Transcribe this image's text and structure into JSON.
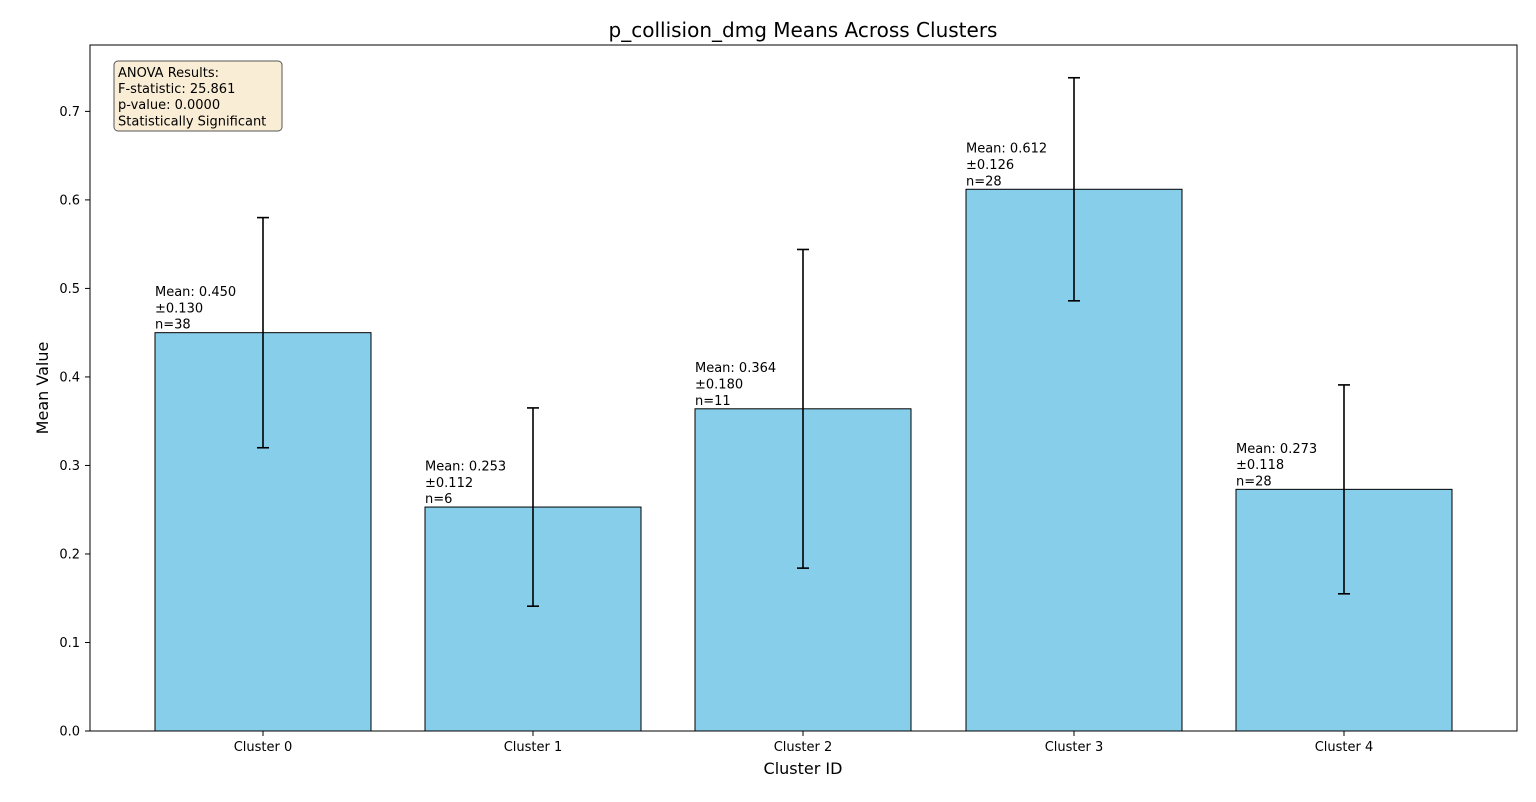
{
  "chart_data": {
    "type": "bar",
    "title": "p_collision_dmg Means Across Clusters",
    "xlabel": "Cluster ID",
    "ylabel": "Mean Value",
    "categories": [
      "Cluster 0",
      "Cluster 1",
      "Cluster 2",
      "Cluster 3",
      "Cluster 4"
    ],
    "values": [
      0.45,
      0.253,
      0.364,
      0.612,
      0.273
    ],
    "errors": [
      0.13,
      0.112,
      0.18,
      0.126,
      0.118
    ],
    "counts": [
      38,
      6,
      11,
      28,
      28
    ],
    "bar_labels": [
      [
        "Mean: 0.450",
        "±0.130",
        "n=38"
      ],
      [
        "Mean: 0.253",
        "±0.112",
        "n=6"
      ],
      [
        "Mean: 0.364",
        "±0.180",
        "n=11"
      ],
      [
        "Mean: 0.612",
        "±0.126",
        "n=28"
      ],
      [
        "Mean: 0.273",
        "±0.118",
        "n=28"
      ]
    ],
    "ylim": [
      0,
      0.775
    ],
    "yticks": [
      0.0,
      0.1,
      0.2,
      0.3,
      0.4,
      0.5,
      0.6,
      0.7
    ],
    "ytick_labels": [
      "0.0",
      "0.1",
      "0.2",
      "0.3",
      "0.4",
      "0.5",
      "0.6",
      "0.7"
    ],
    "grid": false,
    "colors": {
      "bar_fill": "#87ceeb",
      "bar_edge": "#000000",
      "error_bar": "#000000",
      "annotation_fill": "#f5deb3",
      "annotation_edge": "#555555"
    },
    "annotation": {
      "lines": [
        "ANOVA Results:",
        "F-statistic: 25.861",
        "p-value: 0.0000",
        "Statistically Significant"
      ],
      "placement": "top-left"
    }
  }
}
